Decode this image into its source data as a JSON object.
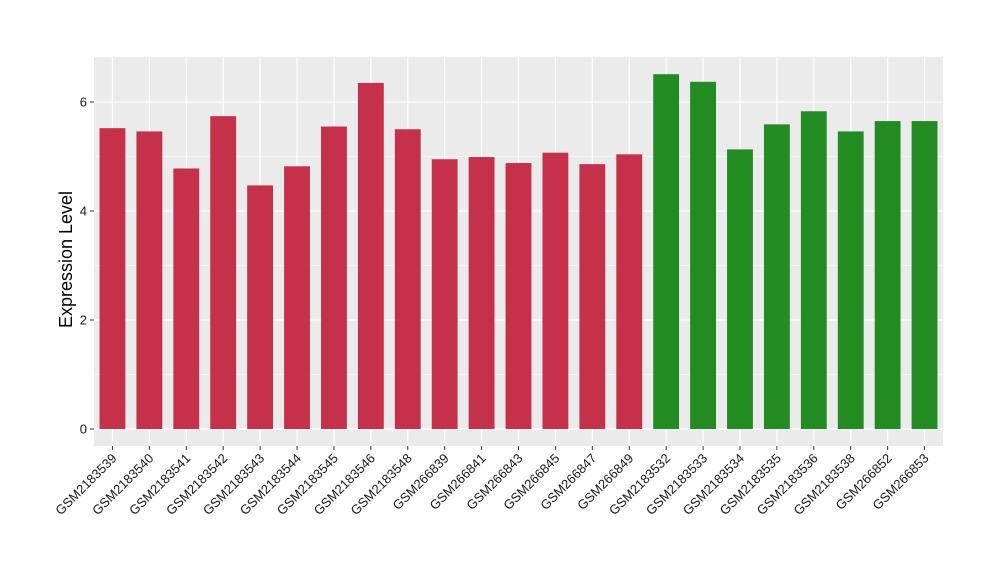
{
  "chart_data": {
    "type": "bar",
    "ylabel": "Expression Level",
    "xlabel": "",
    "ylim": [
      0,
      6.8
    ],
    "yticks": [
      0,
      2,
      4,
      6
    ],
    "grid": true,
    "background": "#ebebeb",
    "group_colors": {
      "red": "#c5304a",
      "green": "#228b22"
    },
    "categories": [
      "GSM2183539",
      "GSM2183540",
      "GSM2183541",
      "GSM2183542",
      "GSM2183543",
      "GSM2183544",
      "GSM2183545",
      "GSM2183546",
      "GSM2183548",
      "GSM266839",
      "GSM266841",
      "GSM266843",
      "GSM266845",
      "GSM266847",
      "GSM266849",
      "GSM2183532",
      "GSM2183533",
      "GSM2183534",
      "GSM2183535",
      "GSM2183536",
      "GSM2183538",
      "GSM266852",
      "GSM266853"
    ],
    "values": [
      5.52,
      5.46,
      4.78,
      5.74,
      4.47,
      4.82,
      5.55,
      6.35,
      5.5,
      4.95,
      4.99,
      4.88,
      5.07,
      4.86,
      5.04,
      6.51,
      6.37,
      5.13,
      5.59,
      5.83,
      5.46,
      5.65,
      5.65
    ],
    "bar_groups": [
      "red",
      "red",
      "red",
      "red",
      "red",
      "red",
      "red",
      "red",
      "red",
      "red",
      "red",
      "red",
      "red",
      "red",
      "red",
      "green",
      "green",
      "green",
      "green",
      "green",
      "green",
      "green",
      "green"
    ]
  }
}
